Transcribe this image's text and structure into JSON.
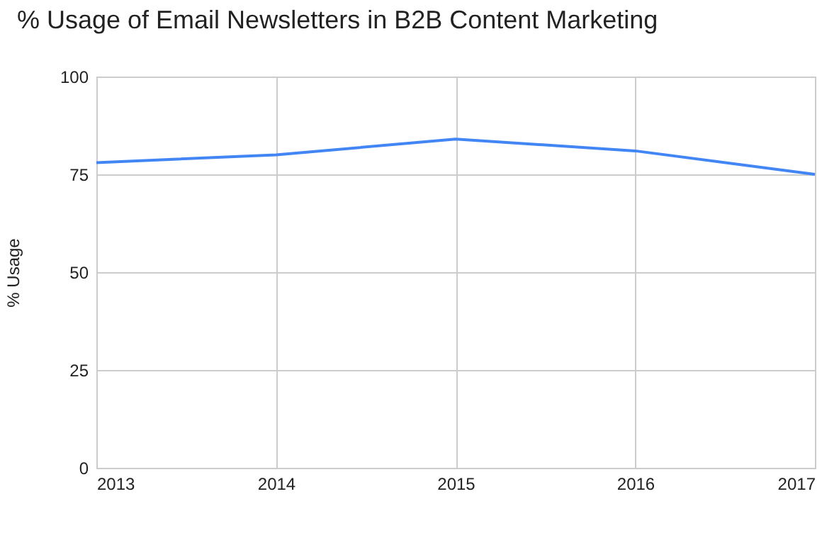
{
  "chart_data": {
    "type": "line",
    "title": "% Usage of Email Newsletters in B2B Content Marketing",
    "ylabel": "% Usage",
    "x": [
      2013,
      2014,
      2015,
      2016,
      2017
    ],
    "series": [
      {
        "color": "#4285f4",
        "values": [
          78,
          80,
          84,
          81,
          75
        ]
      }
    ],
    "xlim": [
      2013,
      2017
    ],
    "xticks": [
      2013,
      2014,
      2015,
      2016,
      2017
    ],
    "ylim": [
      0,
      100
    ],
    "yticks": [
      0,
      25,
      50,
      75,
      100
    ],
    "grid": true,
    "marker": "none",
    "line_style": "solid"
  }
}
